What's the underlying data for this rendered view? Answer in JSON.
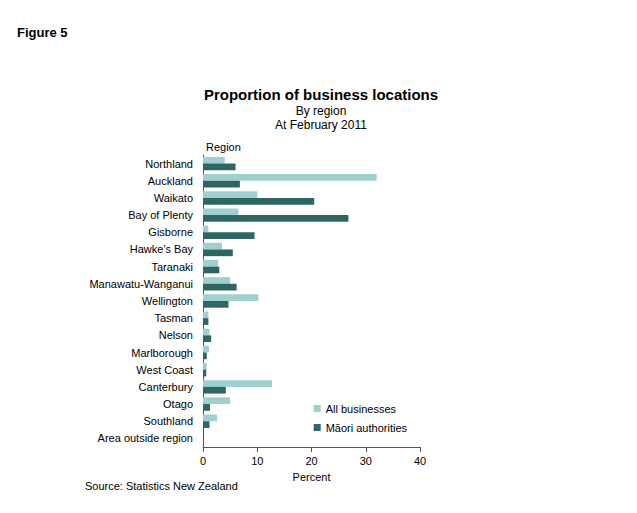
{
  "chart_data": {
    "type": "bar",
    "orientation": "horizontal",
    "figure_label": "Figure 5",
    "title": "Proportion of business locations",
    "subtitle": [
      "By region",
      "At February 2011"
    ],
    "y_label": "Region",
    "x_label": "Percent",
    "source": "Source: Statistics New Zealand",
    "categories": [
      "Northland",
      "Auckland",
      "Waikato",
      "Bay of Plenty",
      "Gisborne",
      "Hawke's Bay",
      "Taranaki",
      "Manawatu-Wanganui",
      "Wellington",
      "Tasman",
      "Nelson",
      "Marlborough",
      "West Coast",
      "Canterbury",
      "Otago",
      "Southland",
      "Area outside region"
    ],
    "series": [
      {
        "name": "All businesses",
        "color": "#9fd0cd",
        "values": [
          4.0,
          32.0,
          10.0,
          6.5,
          1.0,
          3.5,
          2.8,
          5.0,
          10.2,
          1.0,
          1.2,
          1.1,
          0.7,
          12.7,
          5.0,
          2.6,
          0
        ]
      },
      {
        "name": "Māori authorities",
        "color": "#2f6663",
        "values": [
          6.0,
          6.8,
          20.5,
          26.8,
          9.5,
          5.5,
          3.0,
          6.2,
          4.7,
          1.0,
          1.5,
          0.7,
          0.6,
          4.2,
          1.3,
          1.2,
          0
        ]
      }
    ],
    "xlim": [
      0,
      40
    ],
    "xticks": [
      0,
      10,
      20,
      30,
      40
    ],
    "grid": false,
    "legend": "bottom-right"
  }
}
